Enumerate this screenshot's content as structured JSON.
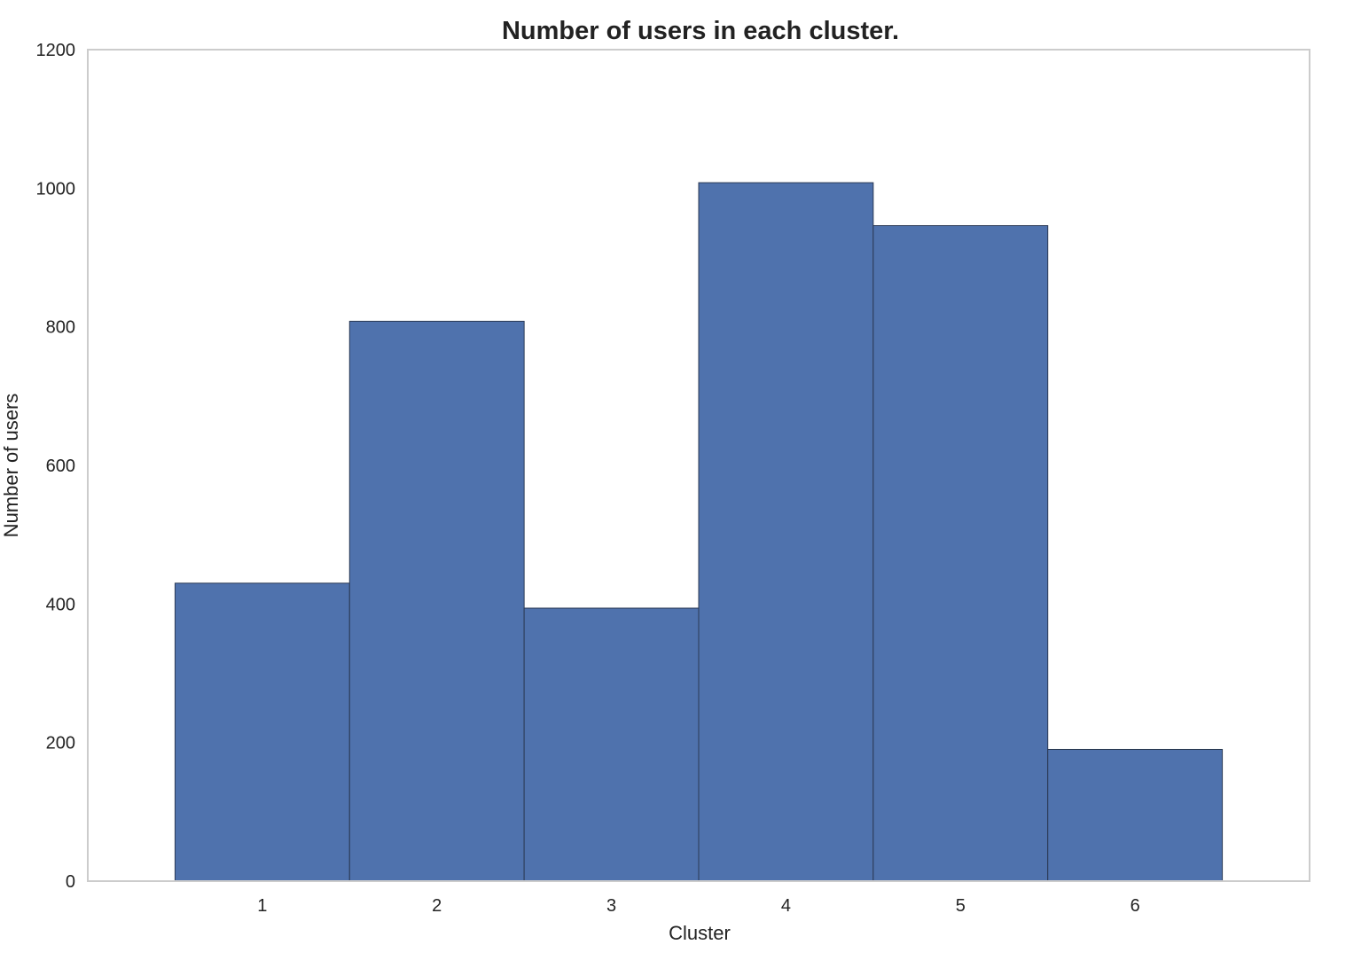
{
  "chart_data": {
    "type": "bar",
    "title": "Number of users in each cluster.",
    "xlabel": "Cluster",
    "ylabel": "Number of users",
    "categories": [
      "1",
      "2",
      "3",
      "4",
      "5",
      "6"
    ],
    "values": [
      430,
      808,
      394,
      1008,
      946,
      190
    ],
    "ylim": [
      0,
      1200
    ],
    "yticks": [
      0,
      200,
      400,
      600,
      800,
      1000,
      1200
    ],
    "grid": false,
    "legend": "none",
    "colors": {
      "bar_fill": "#4f72ad",
      "bar_edge": "#2b3a55",
      "frame": "#cccccc",
      "text": "#222222"
    }
  }
}
